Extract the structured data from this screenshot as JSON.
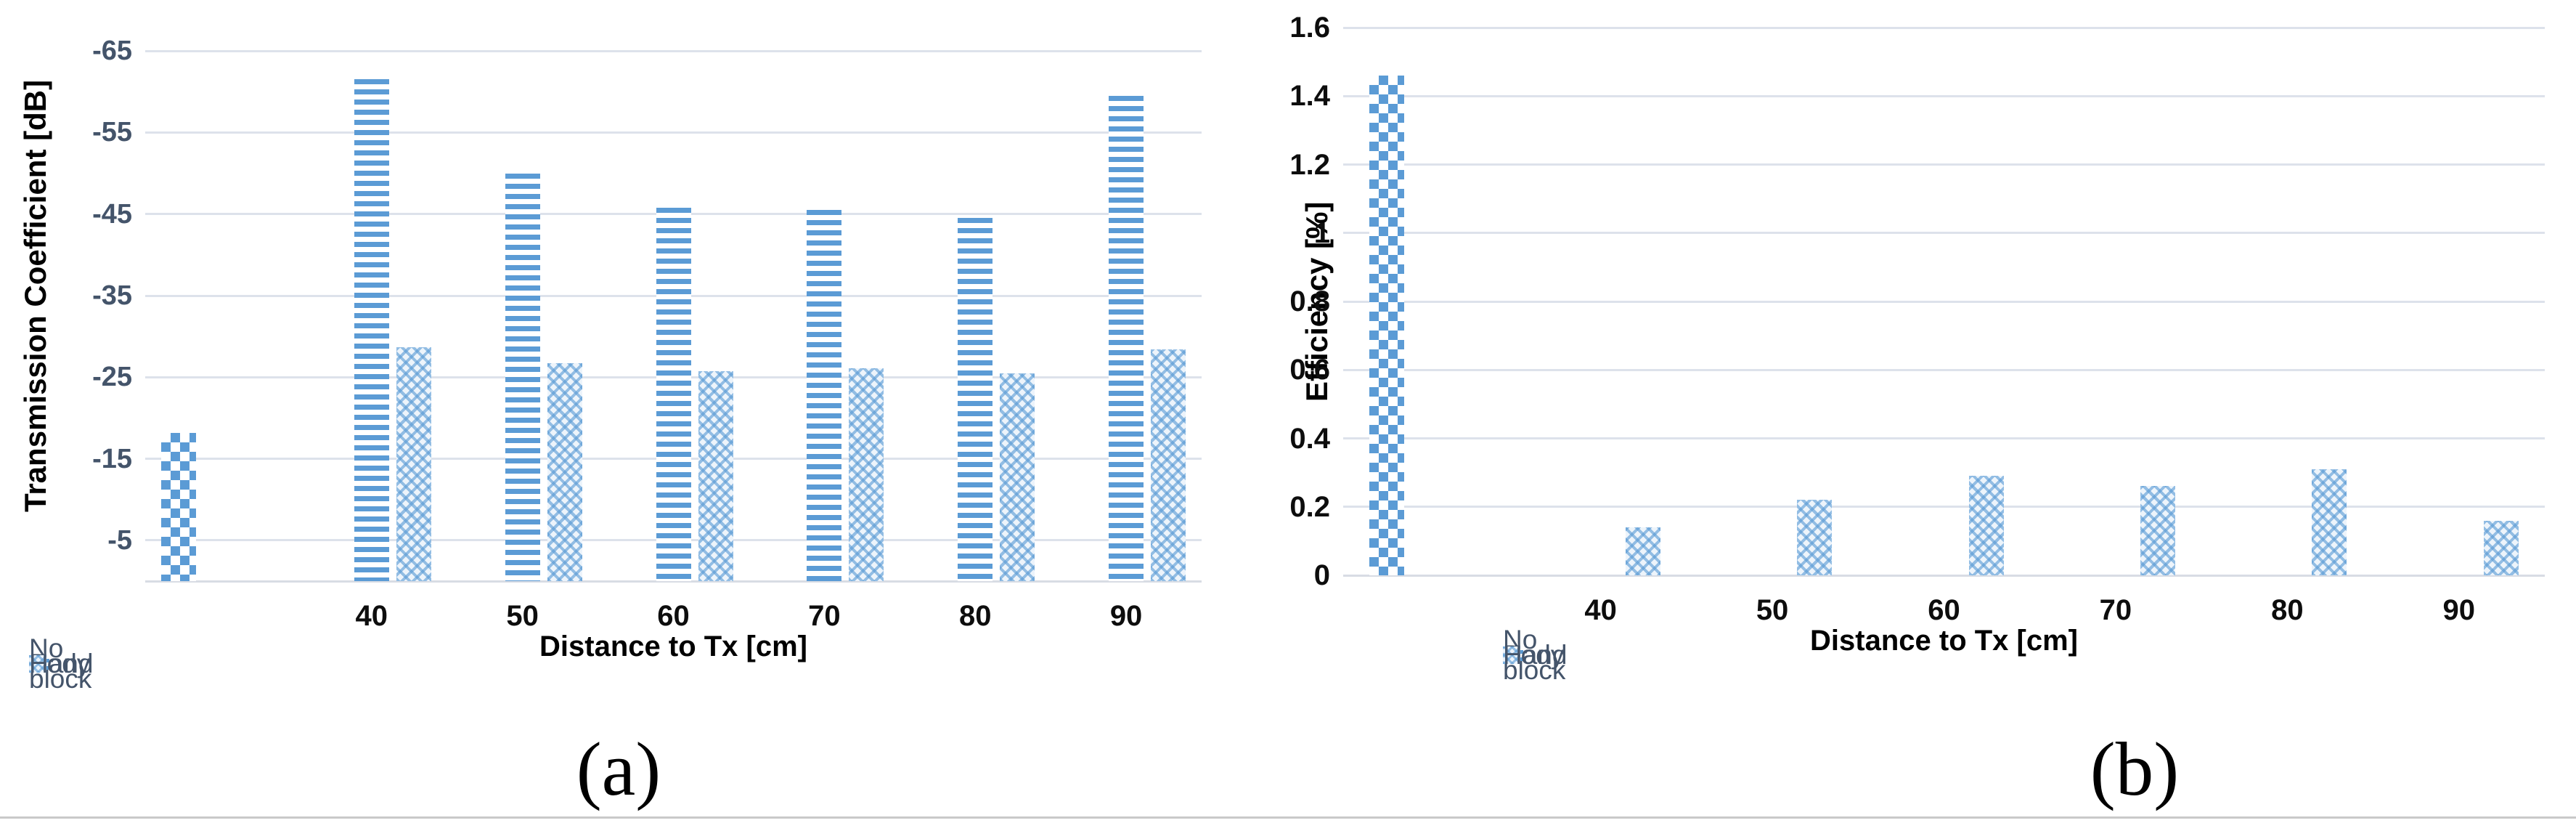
{
  "style": {
    "accent_blue": "#5B9BD5",
    "pattern_light_blue": "#EDF4FB",
    "gridline_color": "#DDE2EB",
    "axisline_color": "#D8DCE4",
    "slate_text": "#44546A",
    "black_text": "#0D0D0D"
  },
  "chart_data": [
    {
      "type": "bar",
      "caption": "(a)",
      "ylabel": "Transmission Coefficient [dB]",
      "xlabel": "Distance to Tx [cm]",
      "categories": [
        "",
        "40",
        "50",
        "60",
        "70",
        "80",
        "90"
      ],
      "series": [
        {
          "name": "No block",
          "pattern": "checker",
          "values": [
            -18.2,
            null,
            null,
            null,
            null,
            null,
            null
          ]
        },
        {
          "name": "Body",
          "pattern": "hstripes",
          "values": [
            null,
            -61.5,
            -50,
            -45.8,
            -45.5,
            -44.5,
            -59.5
          ]
        },
        {
          "name": "Hand",
          "pattern": "diamond",
          "values": [
            null,
            -28.7,
            -26.7,
            -25.7,
            -26.1,
            -25.5,
            -28.4
          ]
        }
      ],
      "y_ticks": [
        -5,
        -15,
        -25,
        -35,
        -45,
        -55,
        -65
      ],
      "ylim": [
        0,
        -70
      ],
      "y_reversed": true,
      "grid": true,
      "legend_position": "bottom-left"
    },
    {
      "type": "bar",
      "caption": "(b)",
      "ylabel": "Efficiency [%]",
      "xlabel": "Distance to Tx [cm]",
      "categories": [
        "",
        "40",
        "50",
        "60",
        "70",
        "80",
        "90"
      ],
      "series": [
        {
          "name": "No block",
          "pattern": "checker",
          "values": [
            1.46,
            null,
            null,
            null,
            null,
            null,
            null
          ]
        },
        {
          "name": "Body",
          "pattern": "hstripes",
          "values": [
            null,
            0,
            0,
            0,
            0,
            0,
            0
          ]
        },
        {
          "name": "Hand",
          "pattern": "diamond",
          "values": [
            null,
            0.14,
            0.22,
            0.29,
            0.26,
            0.31,
            0.16
          ]
        }
      ],
      "y_ticks": [
        0,
        0.2,
        0.4,
        0.6,
        0.8,
        1,
        1.2,
        1.4,
        1.6
      ],
      "ylim": [
        0,
        1.6
      ],
      "y_reversed": false,
      "grid": true,
      "legend_position": "bottom-left"
    }
  ]
}
